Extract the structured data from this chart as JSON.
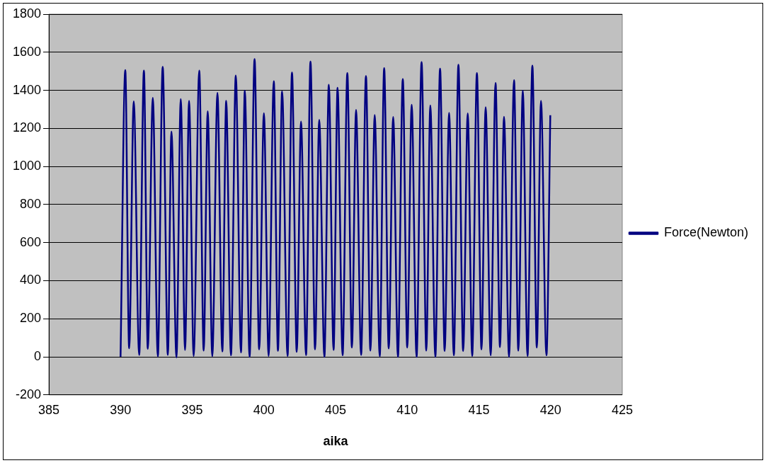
{
  "chart_data": {
    "type": "line",
    "xlabel": "aika",
    "x": [
      390.0,
      390.33,
      390.6,
      390.92,
      391.3,
      391.63,
      391.9,
      392.25,
      392.6,
      392.94,
      393.3,
      393.55,
      393.9,
      394.2,
      394.5,
      394.78,
      395.1,
      395.49,
      395.8,
      396.08,
      396.4,
      396.76,
      397.1,
      397.37,
      397.7,
      398.04,
      398.4,
      398.67,
      399.0,
      399.35,
      399.67,
      400.0,
      400.33,
      400.69,
      400.98,
      401.27,
      401.65,
      401.96,
      402.29,
      402.59,
      402.94,
      403.25,
      403.57,
      403.86,
      404.22,
      404.53,
      404.86,
      405.14,
      405.49,
      405.82,
      406.14,
      406.43,
      406.78,
      407.12,
      407.43,
      407.73,
      408.08,
      408.39,
      408.71,
      409.02,
      409.35,
      409.69,
      410.0,
      410.31,
      410.65,
      411.0,
      411.33,
      411.61,
      411.96,
      412.29,
      412.61,
      412.92,
      413.25,
      413.57,
      413.9,
      414.22,
      414.53,
      414.86,
      415.18,
      415.47,
      415.82,
      416.16,
      416.47,
      416.75,
      417.1,
      417.45,
      417.75,
      418.06,
      418.39,
      418.73,
      419.04,
      419.33,
      419.71,
      419.98
    ],
    "series": [
      {
        "name": "Force(Newton)",
        "color": "#000080",
        "values": [
          0,
          1506,
          45,
          1342,
          10,
          1503,
          42,
          1360,
          3,
          1523,
          10,
          1184,
          -3,
          1354,
          36,
          1344,
          5,
          1503,
          33,
          1290,
          3,
          1386,
          28,
          1344,
          8,
          1477,
          23,
          1398,
          0,
          1564,
          39,
          1279,
          5,
          1448,
          32,
          1394,
          5,
          1493,
          26,
          1236,
          9,
          1551,
          39,
          1245,
          0,
          1429,
          36,
          1413,
          8,
          1490,
          49,
          1297,
          10,
          1475,
          33,
          1270,
          3,
          1516,
          44,
          1260,
          0,
          1459,
          49,
          1324,
          0,
          1548,
          33,
          1320,
          0,
          1514,
          31,
          1281,
          8,
          1534,
          31,
          1278,
          5,
          1490,
          39,
          1311,
          8,
          1438,
          51,
          1261,
          0,
          1453,
          33,
          1398,
          5,
          1529,
          49,
          1344,
          8,
          1269
        ]
      }
    ],
    "xlim": [
      385,
      425
    ],
    "xticks": [
      385,
      390,
      395,
      400,
      405,
      410,
      415,
      420,
      425
    ],
    "ylim": [
      -200,
      1800
    ],
    "yticks": [
      -200,
      0,
      200,
      400,
      600,
      800,
      1000,
      1200,
      1400,
      1600,
      1800
    ],
    "grid": "y",
    "legend": "right",
    "marker": "none",
    "line_style": "solid"
  }
}
